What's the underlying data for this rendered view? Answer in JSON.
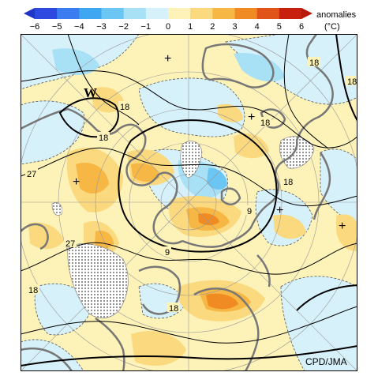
{
  "legend": {
    "title": "anomalies",
    "unit": "(°C)",
    "ticks": [
      "−6",
      "−5",
      "−4",
      "−3",
      "−2",
      "−1",
      "0",
      "1",
      "2",
      "3",
      "4",
      "5",
      "6"
    ],
    "colors": [
      "#2d49e0",
      "#3b7cf0",
      "#3fa6f2",
      "#6cc6f3",
      "#a8e0f6",
      "#d6f1fa",
      "#fdf2b8",
      "#fbd97e",
      "#f7b744",
      "#f08a22",
      "#e0541a",
      "#c8200e"
    ]
  },
  "map": {
    "projection": "north-polar-stereographic",
    "contour_labels": [
      {
        "id": "c1",
        "text": "18"
      },
      {
        "id": "c2",
        "text": "18"
      },
      {
        "id": "c3",
        "text": "18"
      },
      {
        "id": "c4",
        "text": "18"
      },
      {
        "id": "c5",
        "text": "18"
      },
      {
        "id": "c6",
        "text": "18"
      },
      {
        "id": "c7",
        "text": "27"
      },
      {
        "id": "c8",
        "text": "27"
      },
      {
        "id": "c9",
        "text": "9"
      },
      {
        "id": "c10",
        "text": "9"
      },
      {
        "id": "c11",
        "text": "18"
      },
      {
        "id": "c12",
        "text": "18"
      }
    ],
    "pressure_marks": [
      {
        "id": "w1",
        "text": "W"
      }
    ],
    "plus_marks": [
      "+",
      "+",
      "+",
      "+",
      "+"
    ]
  },
  "credit": "CPD/JMA"
}
